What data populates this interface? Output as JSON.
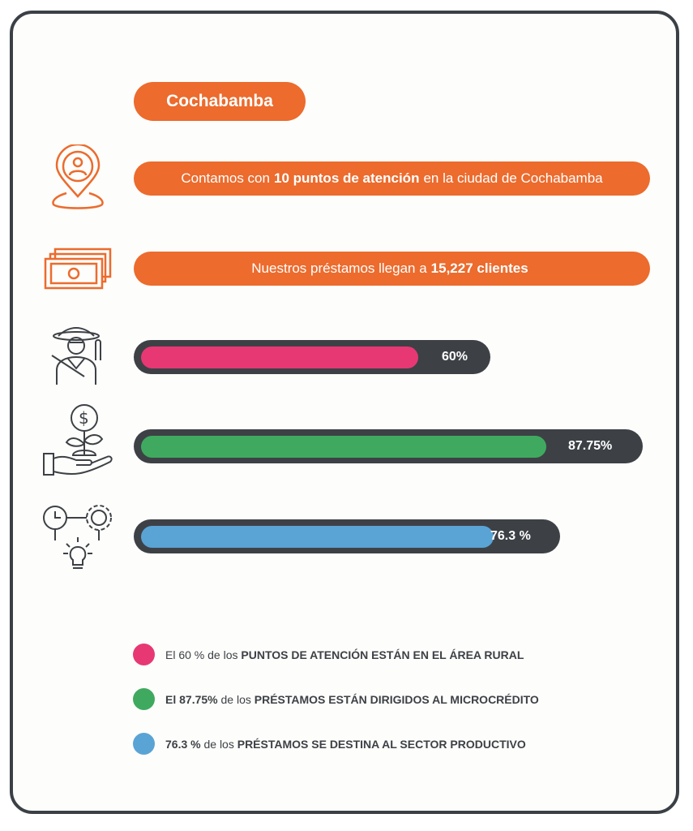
{
  "city": "Cochabamba",
  "info": [
    {
      "pre": "Contamos con",
      "bold": "10 puntos de atención",
      "post": "en la ciudad de Cochabamba"
    },
    {
      "pre": "Nuestros préstamos llegan a",
      "bold": "15,227 clientes",
      "post": ""
    }
  ],
  "colors": {
    "orange": "#ec6b2d",
    "track": "#3d4146",
    "pink": "#e73874",
    "green": "#3faa5f",
    "blue": "#5aa3d5"
  },
  "bars": [
    {
      "label": "60%",
      "value": 60,
      "color": "#e73874",
      "icon": "farmer-icon"
    },
    {
      "label": "87.75%",
      "value": 87.75,
      "color": "#3faa5f",
      "icon": "money-plant-hand-icon"
    },
    {
      "label": "76.3 %",
      "value": 76.3,
      "color": "#5aa3d5",
      "icon": "time-gear-idea-icon"
    }
  ],
  "legend": [
    {
      "norm": "El 60 % de los",
      "bold": "PUNTOS DE ATENCIÓN ESTÁN EN EL ÁREA RURAL",
      "color": "#e73874"
    },
    {
      "norm_pre": "El 87.75%",
      "norm": "de los",
      "bold": "PRÉSTAMOS ESTÁN DIRIGIDOS AL MICROCRÉDITO",
      "color": "#3faa5f"
    },
    {
      "norm_pre": "76.3 %",
      "norm": "de los",
      "bold": "PRÉSTAMOS SE  DESTINA AL SECTOR PRODUCTIVO",
      "color": "#5aa3d5"
    }
  ]
}
